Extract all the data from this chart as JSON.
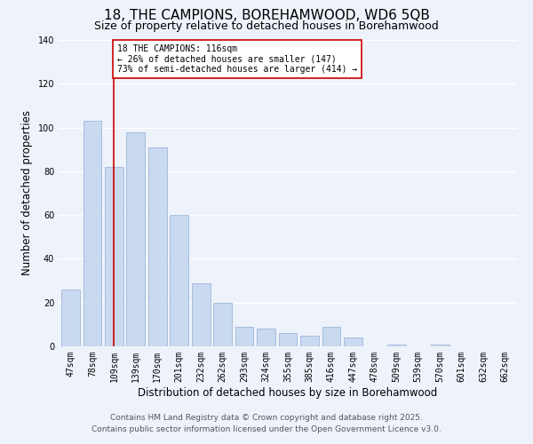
{
  "title": "18, THE CAMPIONS, BOREHAMWOOD, WD6 5QB",
  "subtitle": "Size of property relative to detached houses in Borehamwood",
  "xlabel": "Distribution of detached houses by size in Borehamwood",
  "ylabel": "Number of detached properties",
  "bar_labels": [
    "47sqm",
    "78sqm",
    "109sqm",
    "139sqm",
    "170sqm",
    "201sqm",
    "232sqm",
    "262sqm",
    "293sqm",
    "324sqm",
    "355sqm",
    "385sqm",
    "416sqm",
    "447sqm",
    "478sqm",
    "509sqm",
    "539sqm",
    "570sqm",
    "601sqm",
    "632sqm",
    "662sqm"
  ],
  "bar_values": [
    26,
    103,
    82,
    98,
    91,
    60,
    29,
    20,
    9,
    8,
    6,
    5,
    9,
    4,
    0,
    1,
    0,
    1,
    0,
    0,
    0
  ],
  "bar_color": "#c8d9f0",
  "bar_edge_color": "#a0b8d8",
  "vline_x_idx": 2,
  "vline_color": "#cc0000",
  "annotation_line1": "18 THE CAMPIONS: 116sqm",
  "annotation_line2": "← 26% of detached houses are smaller (147)",
  "annotation_line3": "73% of semi-detached houses are larger (414) →",
  "annotation_box_color": "#ffffff",
  "annotation_box_edge": "#cc0000",
  "ylim": [
    0,
    140
  ],
  "yticks": [
    0,
    20,
    40,
    60,
    80,
    100,
    120,
    140
  ],
  "footer_line1": "Contains HM Land Registry data © Crown copyright and database right 2025.",
  "footer_line2": "Contains public sector information licensed under the Open Government Licence v3.0.",
  "background_color": "#eef2fb",
  "grid_color": "#ffffff",
  "title_fontsize": 11,
  "subtitle_fontsize": 9,
  "axis_label_fontsize": 8.5,
  "tick_fontsize": 7,
  "annotation_fontsize": 7,
  "footer_fontsize": 6.5
}
